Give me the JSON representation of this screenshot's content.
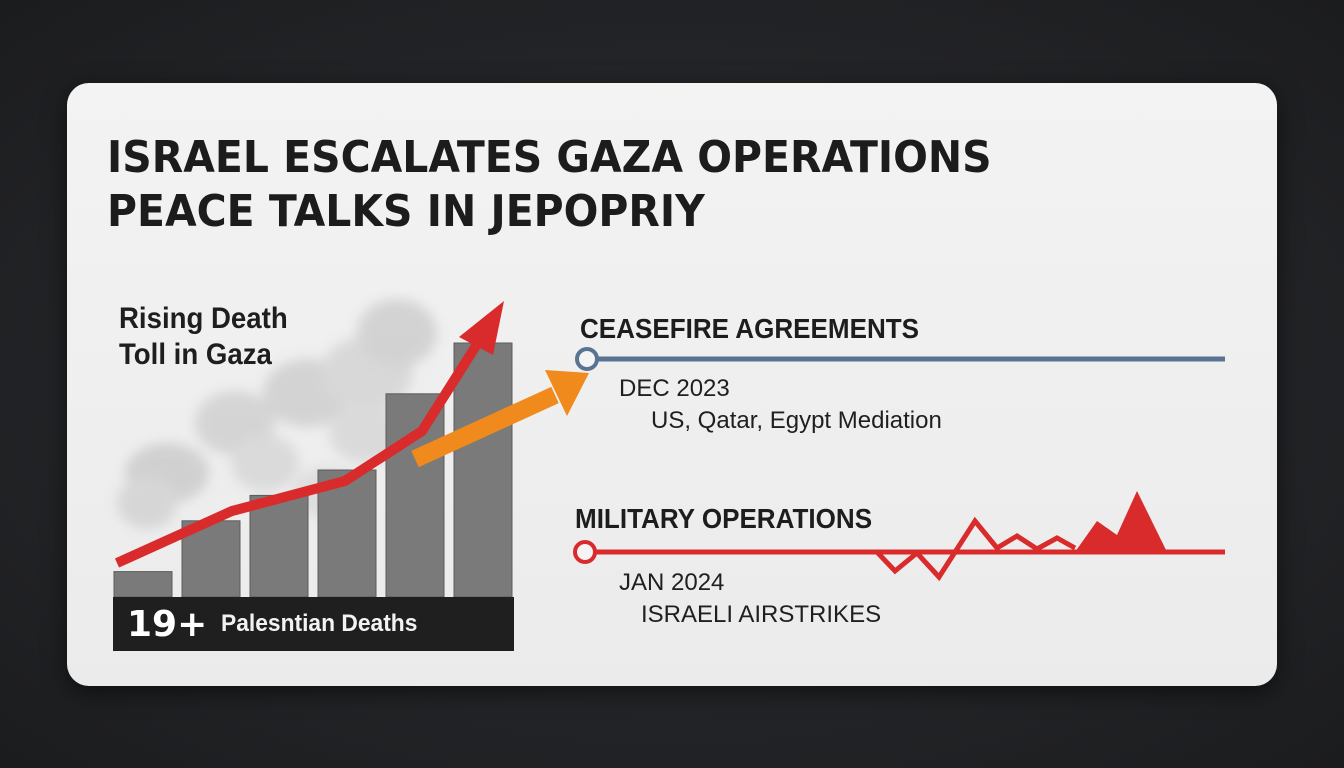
{
  "headline": {
    "line1": "ISRAEL ESCALATES GAZA OPERATIONS",
    "line2": "PEACE TALKS IN JEPOPRIY"
  },
  "death_toll_chart": {
    "label_line1": "Rising Death",
    "label_line2": "Toll in Gaza",
    "bar_values": [
      1,
      3,
      4,
      5,
      8,
      10
    ],
    "trend_color": "#d92b2b",
    "bar_color": "#7a7a7a",
    "stat_number": "19+",
    "stat_label": "Palesntian Deaths"
  },
  "connector_arrow_color": "#f08a1c",
  "ceasefire": {
    "title": "CEASEFIRE AGREEMENTS",
    "date": "DEC 2023",
    "description": "US, Qatar, Egypt Mediation",
    "line_color": "#5a7391"
  },
  "military": {
    "title": "MILITARY OPERATIONS",
    "date": "JAN 2024",
    "description": "ISRAELI AIRSTRIKES",
    "line_color": "#d92b2b"
  }
}
